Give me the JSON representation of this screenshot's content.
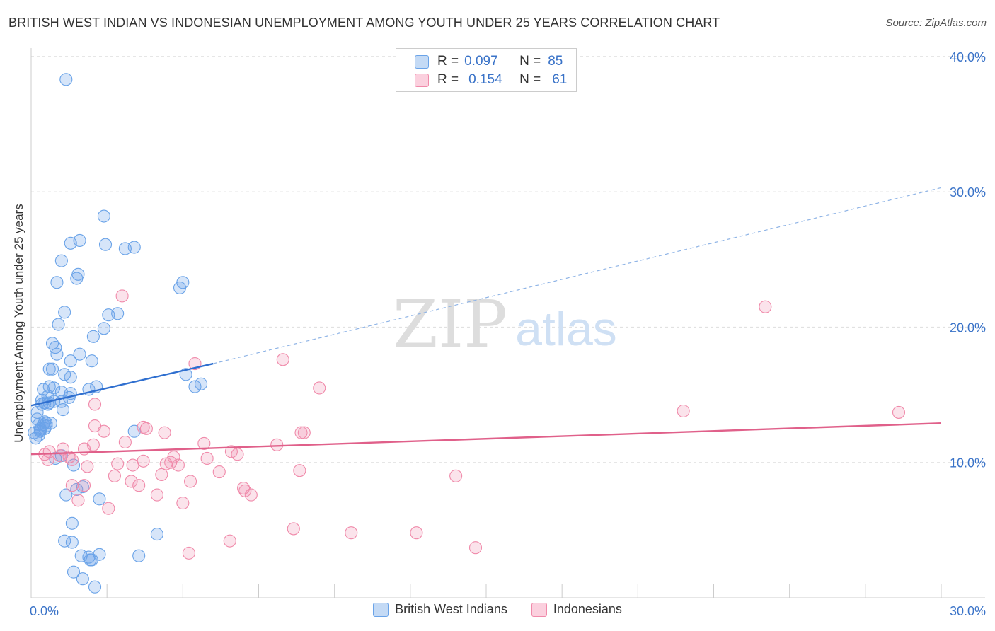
{
  "title": "BRITISH WEST INDIAN VS INDONESIAN UNEMPLOYMENT AMONG YOUTH UNDER 25 YEARS CORRELATION CHART",
  "source": "Source: ZipAtlas.com",
  "watermark": {
    "zip": "ZIP",
    "atlas": "atlas"
  },
  "stats_box": {
    "rows": [
      {
        "r_label": "R =",
        "r_value": "0.097",
        "n_label": "N =",
        "n_value": "85",
        "color": "#6aa3e8"
      },
      {
        "r_label": "R =",
        "r_value": "0.154",
        "n_label": "N =",
        "n_value": "61",
        "color": "#f08aaa"
      }
    ]
  },
  "legend": [
    {
      "label": "British West Indians",
      "color": "#6aa3e8"
    },
    {
      "label": "Indonesians",
      "color": "#f08aaa"
    }
  ],
  "chart_data": {
    "type": "scatter",
    "ylabel": "Unemployment Among Youth under 25 years",
    "xlim": [
      0,
      30
    ],
    "ylim": [
      0,
      40.5
    ],
    "x_tick_labels": [
      {
        "value": 0,
        "label": "0.0%"
      },
      {
        "value": 30,
        "label": "30.0%"
      }
    ],
    "y_tick_labels": [
      {
        "value": 10,
        "label": "10.0%"
      },
      {
        "value": 20,
        "label": "20.0%"
      },
      {
        "value": 30,
        "label": "30.0%"
      },
      {
        "value": 40,
        "label": "40.0%"
      }
    ],
    "series": [
      {
        "name": "British West Indians",
        "color": "#6aa3e8",
        "trend_color": "#2f6fcf",
        "trend": {
          "x0": 0,
          "y0": 14.2,
          "x1": 6.0,
          "y1": 17.3,
          "x_dash_end": 30,
          "y_dash_end": 30.3
        },
        "points": [
          [
            1.15,
            38.3
          ],
          [
            2.4,
            28.2
          ],
          [
            1.6,
            26.4
          ],
          [
            1.3,
            26.2
          ],
          [
            2.45,
            26.1
          ],
          [
            3.1,
            25.8
          ],
          [
            3.4,
            25.9
          ],
          [
            1.0,
            24.9
          ],
          [
            1.55,
            23.9
          ],
          [
            1.5,
            23.6
          ],
          [
            0.85,
            23.3
          ],
          [
            5.0,
            23.3
          ],
          [
            4.9,
            22.9
          ],
          [
            1.1,
            21.1
          ],
          [
            2.55,
            20.9
          ],
          [
            2.85,
            21.0
          ],
          [
            0.9,
            20.2
          ],
          [
            2.4,
            19.9
          ],
          [
            2.05,
            19.3
          ],
          [
            0.7,
            18.8
          ],
          [
            0.8,
            18.5
          ],
          [
            1.6,
            18.0
          ],
          [
            0.85,
            18.0
          ],
          [
            1.3,
            17.5
          ],
          [
            2.0,
            17.5
          ],
          [
            0.6,
            16.9
          ],
          [
            0.7,
            16.9
          ],
          [
            1.1,
            16.5
          ],
          [
            1.3,
            16.3
          ],
          [
            5.1,
            16.5
          ],
          [
            5.6,
            15.8
          ],
          [
            5.4,
            15.6
          ],
          [
            2.15,
            15.6
          ],
          [
            1.9,
            15.4
          ],
          [
            0.75,
            15.5
          ],
          [
            0.4,
            15.4
          ],
          [
            1.3,
            15.1
          ],
          [
            0.55,
            14.9
          ],
          [
            1.25,
            14.8
          ],
          [
            0.6,
            14.4
          ],
          [
            0.45,
            14.4
          ],
          [
            0.35,
            14.3
          ],
          [
            1.0,
            14.5
          ],
          [
            0.2,
            13.7
          ],
          [
            1.05,
            13.9
          ],
          [
            0.2,
            13.2
          ],
          [
            0.4,
            12.8
          ],
          [
            0.65,
            12.9
          ],
          [
            0.5,
            12.9
          ],
          [
            0.25,
            12.8
          ],
          [
            0.3,
            12.5
          ],
          [
            0.45,
            12.5
          ],
          [
            0.5,
            12.7
          ],
          [
            0.3,
            12.3
          ],
          [
            0.1,
            12.2
          ],
          [
            0.15,
            11.8
          ],
          [
            0.25,
            12.0
          ],
          [
            3.4,
            12.3
          ],
          [
            1.0,
            10.5
          ],
          [
            1.4,
            9.8
          ],
          [
            0.8,
            10.3
          ],
          [
            1.7,
            8.2
          ],
          [
            1.5,
            8.0
          ],
          [
            1.15,
            7.6
          ],
          [
            2.25,
            7.3
          ],
          [
            1.35,
            5.5
          ],
          [
            4.15,
            4.7
          ],
          [
            1.1,
            4.2
          ],
          [
            1.35,
            4.1
          ],
          [
            1.65,
            3.1
          ],
          [
            2.25,
            3.2
          ],
          [
            3.55,
            3.1
          ],
          [
            1.95,
            2.8
          ],
          [
            2.0,
            2.8
          ],
          [
            1.4,
            1.9
          ],
          [
            1.7,
            1.4
          ],
          [
            2.1,
            0.8
          ],
          [
            1.9,
            3.0
          ],
          [
            0.55,
            14.3
          ],
          [
            0.3,
            12.4
          ],
          [
            0.6,
            15.6
          ],
          [
            0.45,
            13.0
          ],
          [
            0.35,
            14.6
          ],
          [
            0.75,
            14.5
          ],
          [
            1.0,
            15.2
          ]
        ]
      },
      {
        "name": "Indonesians",
        "color": "#f08aaa",
        "trend_color": "#e0608a",
        "trend": {
          "x0": 0,
          "y0": 10.6,
          "x1": 30,
          "y1": 12.9
        },
        "points": [
          [
            3.0,
            22.3
          ],
          [
            5.4,
            17.3
          ],
          [
            8.3,
            17.6
          ],
          [
            9.5,
            15.5
          ],
          [
            2.1,
            14.3
          ],
          [
            21.5,
            13.8
          ],
          [
            28.6,
            13.7
          ],
          [
            24.2,
            21.5
          ],
          [
            3.7,
            12.6
          ],
          [
            3.8,
            12.5
          ],
          [
            2.4,
            12.3
          ],
          [
            4.4,
            12.2
          ],
          [
            8.9,
            12.2
          ],
          [
            9.0,
            12.2
          ],
          [
            3.1,
            11.5
          ],
          [
            5.7,
            11.4
          ],
          [
            8.1,
            11.3
          ],
          [
            2.05,
            11.3
          ],
          [
            1.05,
            11.0
          ],
          [
            1.75,
            11.0
          ],
          [
            6.6,
            10.8
          ],
          [
            6.8,
            10.6
          ],
          [
            0.6,
            10.8
          ],
          [
            0.45,
            10.6
          ],
          [
            1.25,
            10.4
          ],
          [
            0.95,
            10.5
          ],
          [
            0.55,
            10.2
          ],
          [
            4.7,
            10.4
          ],
          [
            5.8,
            10.3
          ],
          [
            3.7,
            10.1
          ],
          [
            4.6,
            10.0
          ],
          [
            4.85,
            9.8
          ],
          [
            4.45,
            9.9
          ],
          [
            3.35,
            9.8
          ],
          [
            2.85,
            9.9
          ],
          [
            1.85,
            9.7
          ],
          [
            1.35,
            10.2
          ],
          [
            2.75,
            9.0
          ],
          [
            4.3,
            9.1
          ],
          [
            6.2,
            9.3
          ],
          [
            8.85,
            9.4
          ],
          [
            14.0,
            9.0
          ],
          [
            1.75,
            8.3
          ],
          [
            1.35,
            8.3
          ],
          [
            3.3,
            8.6
          ],
          [
            3.55,
            8.3
          ],
          [
            5.25,
            8.6
          ],
          [
            7.0,
            8.1
          ],
          [
            7.05,
            7.9
          ],
          [
            7.25,
            7.6
          ],
          [
            4.15,
            7.6
          ],
          [
            1.55,
            7.2
          ],
          [
            5.0,
            7.0
          ],
          [
            2.55,
            6.6
          ],
          [
            8.65,
            5.1
          ],
          [
            10.55,
            4.8
          ],
          [
            12.7,
            4.8
          ],
          [
            6.55,
            4.2
          ],
          [
            14.65,
            3.7
          ],
          [
            5.2,
            3.3
          ],
          [
            2.1,
            12.7
          ]
        ]
      }
    ]
  }
}
